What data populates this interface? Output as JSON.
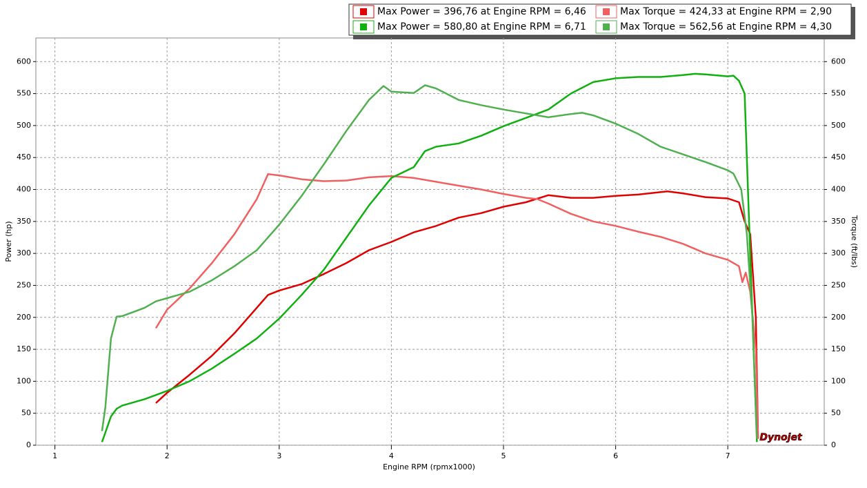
{
  "chart_data": {
    "type": "line",
    "xlabel": "Engine RPM (rpmx1000)",
    "ylabel": "Power (hp)",
    "y2label": "Torque (ft/lbs)",
    "logo": "Dynojet",
    "xlim": [
      0.83,
      7.86
    ],
    "xticks": [
      1,
      2,
      3,
      4,
      5,
      6,
      7
    ],
    "ylim": [
      0,
      637
    ],
    "yticks": [
      0,
      50,
      100,
      150,
      200,
      250,
      300,
      350,
      400,
      450,
      500,
      550,
      600
    ],
    "y2lim": [
      0,
      637
    ],
    "y2ticks": [
      0,
      50,
      100,
      150,
      200,
      250,
      300,
      350,
      400,
      450,
      500,
      550,
      600
    ],
    "grid": true,
    "series": [
      {
        "name": "Max Power = 396,76 at Engine RPM = 6,46",
        "color": "#e00000",
        "x": [
          1.9,
          2.0,
          2.2,
          2.4,
          2.6,
          2.8,
          2.9,
          3.0,
          3.2,
          3.4,
          3.6,
          3.8,
          4.0,
          4.2,
          4.4,
          4.6,
          4.8,
          5.0,
          5.2,
          5.4,
          5.6,
          5.8,
          6.0,
          6.2,
          6.46,
          6.6,
          6.8,
          7.0,
          7.1,
          7.15,
          7.2,
          7.25,
          7.27
        ],
        "values": [
          66,
          82,
          110,
          140,
          175,
          215,
          235,
          242,
          252,
          268,
          285,
          305,
          318,
          333,
          343,
          356,
          363,
          373,
          380,
          391,
          387,
          387,
          390,
          392,
          397,
          394,
          388,
          386,
          380,
          350,
          330,
          200,
          10
        ]
      },
      {
        "name": "Max Torque = 424,33 at Engine RPM = 2,90",
        "color": "#f06060",
        "axis": "y2",
        "x": [
          1.9,
          2.0,
          2.2,
          2.4,
          2.6,
          2.8,
          2.9,
          3.0,
          3.2,
          3.4,
          3.6,
          3.8,
          4.0,
          4.2,
          4.4,
          4.6,
          4.8,
          5.0,
          5.2,
          5.3,
          5.4,
          5.6,
          5.8,
          6.0,
          6.2,
          6.4,
          6.6,
          6.8,
          7.0,
          7.1,
          7.13,
          7.16,
          7.2,
          7.25,
          7.27
        ],
        "values": [
          183,
          212,
          245,
          285,
          330,
          385,
          424,
          422,
          416,
          413,
          414,
          419,
          421,
          418,
          412,
          406,
          400,
          393,
          387,
          385,
          378,
          362,
          350,
          343,
          334,
          326,
          315,
          300,
          290,
          280,
          255,
          270,
          240,
          150,
          10
        ]
      },
      {
        "name": "Max Power = 580,80 at Engine RPM = 6,71",
        "color": "#10b010",
        "x": [
          1.42,
          1.45,
          1.5,
          1.55,
          1.6,
          1.8,
          2.0,
          2.2,
          2.4,
          2.6,
          2.8,
          3.0,
          3.2,
          3.4,
          3.6,
          3.8,
          4.0,
          4.2,
          4.3,
          4.4,
          4.6,
          4.8,
          5.0,
          5.2,
          5.4,
          5.6,
          5.8,
          6.0,
          6.2,
          6.4,
          6.6,
          6.71,
          6.8,
          7.0,
          7.05,
          7.1,
          7.15,
          7.18,
          7.22,
          7.26
        ],
        "values": [
          5,
          20,
          45,
          57,
          62,
          72,
          85,
          100,
          120,
          143,
          167,
          198,
          235,
          275,
          325,
          375,
          418,
          435,
          460,
          467,
          472,
          484,
          499,
          512,
          525,
          550,
          568,
          574,
          576,
          576,
          579,
          581,
          580,
          577,
          578,
          570,
          550,
          400,
          200,
          5
        ]
      },
      {
        "name": "Max Torque = 562,56 at Engine RPM = 4,30",
        "color": "#50b050",
        "axis": "y2",
        "x": [
          1.42,
          1.45,
          1.5,
          1.55,
          1.6,
          1.8,
          1.9,
          2.0,
          2.2,
          2.4,
          2.6,
          2.8,
          3.0,
          3.2,
          3.4,
          3.6,
          3.8,
          3.93,
          4.0,
          4.2,
          4.3,
          4.4,
          4.6,
          4.8,
          5.0,
          5.2,
          5.4,
          5.6,
          5.7,
          5.8,
          6.0,
          6.2,
          6.4,
          6.6,
          6.8,
          7.0,
          7.05,
          7.12,
          7.17,
          7.22,
          7.26
        ],
        "values": [
          22,
          60,
          167,
          201,
          202,
          215,
          225,
          230,
          240,
          258,
          280,
          305,
          345,
          390,
          440,
          492,
          540,
          562,
          553,
          551,
          563,
          558,
          540,
          532,
          525,
          519,
          513,
          518,
          520,
          516,
          503,
          487,
          467,
          455,
          443,
          430,
          425,
          400,
          330,
          200,
          10
        ]
      }
    ]
  }
}
